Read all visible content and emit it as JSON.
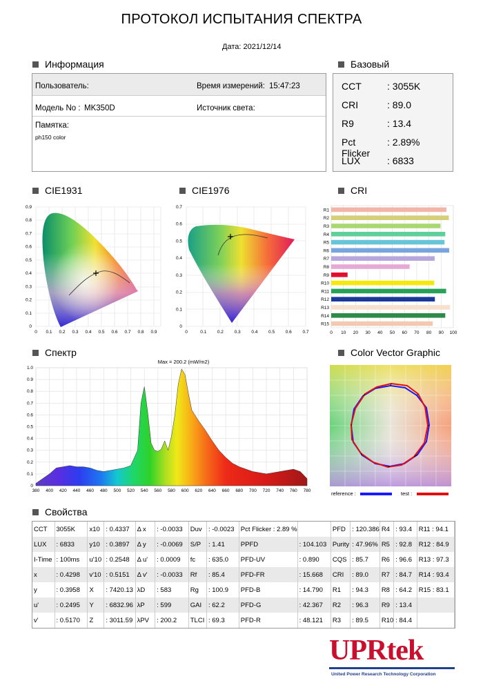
{
  "title": "ПРОТОКОЛ ИСПЫТАНИЯ СПЕКТРА",
  "date": "Дата: 2021/12/14",
  "sections": {
    "info": "Информация",
    "basic": "Базовый",
    "cie1931": "CIE1931",
    "cie1976": "CIE1976",
    "cri": "CRI",
    "spectrum": "Спектр",
    "cvg": "Color Vector Graphic",
    "props": "Свойства"
  },
  "info": {
    "user_label": "Пользователь:",
    "time_label": "Время измерений:",
    "time_value": "15:47:23",
    "model_label": "Модель No :",
    "model_value": "MK350D",
    "source_label": "Источник света:",
    "memo_label": "Памятка:",
    "memo_value": "ph150 color"
  },
  "basic": [
    {
      "k": "CCT",
      "v": ": 3055K"
    },
    {
      "k": "CRI",
      "v": ": 89.0"
    },
    {
      "k": "R9",
      "v": ": 13.4"
    },
    {
      "k": "Pct Flicker",
      "v": ": 2.89%"
    },
    {
      "k": "LUX",
      "v": ": 6833"
    }
  ],
  "cie1931_ticks": {
    "x": [
      "0",
      "0.1",
      "0.2",
      "0.3",
      "0.4",
      "0.5",
      "0.6",
      "0.7",
      "0.8",
      "0.9"
    ],
    "y": [
      "0",
      "0.1",
      "0.2",
      "0.3",
      "0.4",
      "0.5",
      "0.6",
      "0.7",
      "0.8",
      "0.9"
    ]
  },
  "cie1976_ticks": {
    "x": [
      "0",
      "0.1",
      "0.2",
      "0.3",
      "0.4",
      "0.5",
      "0.6",
      "0.7"
    ],
    "y": [
      "0",
      "0.1",
      "0.2",
      "0.3",
      "0.4",
      "0.5",
      "0.6",
      "0.7"
    ]
  },
  "chart_data": [
    {
      "type": "bar",
      "orientation": "horizontal",
      "categories": [
        "R1",
        "R2",
        "R3",
        "R4",
        "R5",
        "R6",
        "R7",
        "R8",
        "R9",
        "R10",
        "R11",
        "R12",
        "R13",
        "R14",
        "R15"
      ],
      "values": [
        94.3,
        96.3,
        89.5,
        93.4,
        92.8,
        96.6,
        84.7,
        64.2,
        13.4,
        84.4,
        94.1,
        84.9,
        97.3,
        93.4,
        83.1
      ],
      "colors": [
        "#f2b6a8",
        "#d6cf7a",
        "#a9d873",
        "#5fcf9b",
        "#67c5d8",
        "#7aa4de",
        "#b7a6de",
        "#e6a9d4",
        "#e0102e",
        "#f4e80c",
        "#27a05a",
        "#1a3a9a",
        "#f8e0cf",
        "#2d8b4a",
        "#f4c9b2"
      ],
      "xlim": [
        0,
        100
      ],
      "xticks": [
        "0",
        "10",
        "20",
        "30",
        "40",
        "50",
        "60",
        "70",
        "80",
        "90",
        "100"
      ]
    },
    {
      "type": "area",
      "title": "Max = 200.2 (mW/m2)",
      "xlim": [
        380,
        780
      ],
      "ylim": [
        0,
        1.0
      ],
      "xticks": [
        "380",
        "400",
        "420",
        "440",
        "460",
        "480",
        "500",
        "520",
        "540",
        "560",
        "580",
        "600",
        "620",
        "640",
        "660",
        "680",
        "700",
        "720",
        "740",
        "760",
        "780"
      ],
      "yticks": [
        "0",
        "0.1",
        "0.2",
        "0.3",
        "0.4",
        "0.5",
        "0.6",
        "0.7",
        "0.8",
        "0.9",
        "1.0"
      ],
      "x": [
        380,
        390,
        400,
        410,
        420,
        430,
        440,
        450,
        460,
        470,
        480,
        490,
        500,
        510,
        520,
        530,
        535,
        540,
        545,
        550,
        555,
        560,
        565,
        570,
        575,
        580,
        585,
        590,
        595,
        600,
        605,
        610,
        620,
        630,
        640,
        650,
        660,
        670,
        680,
        690,
        700,
        710,
        720,
        730,
        740,
        750,
        760,
        770,
        780
      ],
      "y": [
        0.02,
        0.06,
        0.1,
        0.15,
        0.16,
        0.17,
        0.16,
        0.16,
        0.15,
        0.13,
        0.12,
        0.13,
        0.14,
        0.15,
        0.17,
        0.3,
        0.7,
        0.84,
        0.62,
        0.36,
        0.3,
        0.29,
        0.31,
        0.38,
        0.3,
        0.42,
        0.6,
        0.86,
        0.99,
        0.94,
        0.78,
        0.64,
        0.55,
        0.47,
        0.38,
        0.3,
        0.24,
        0.19,
        0.16,
        0.14,
        0.12,
        0.11,
        0.1,
        0.11,
        0.12,
        0.13,
        0.14,
        0.12,
        0.06
      ]
    },
    {
      "type": "scatter",
      "series": [
        {
          "name": "reference",
          "color": "#1a1aff"
        },
        {
          "name": "test",
          "color": "#e01010"
        }
      ]
    }
  ],
  "cvg": {
    "legend_reference": "reference :",
    "legend_test": "test :",
    "ref_color": "#1a1aff",
    "test_color": "#e01010"
  },
  "props_rows": [
    [
      "CCT",
      "3055K",
      "x10",
      ": 0.4337",
      "Δ x",
      ": -0.0033",
      "Duv",
      ": -0.0023",
      "Pct Flicker : 2.89 %",
      "",
      "PFD",
      ": 120.386",
      "R4",
      ": 93.4",
      "R11 : 94.1"
    ],
    [
      "LUX",
      ": 6833",
      "y10",
      ": 0.3897",
      "Δ y",
      ": -0.0069",
      "S/P",
      ": 1.41",
      "PPFD",
      ": 104.103",
      "Purity",
      ": 47.96%",
      "R5",
      ": 92.8",
      "R12 : 84.9"
    ],
    [
      "I-Time",
      ": 100ms",
      "u'10",
      ": 0.2548",
      "Δ u'",
      ": 0.0009",
      "fc",
      ": 635.0",
      "PFD-UV",
      ": 0.890",
      "CQS",
      ": 85.7",
      "R6",
      ": 96.6",
      "R13 : 97.3"
    ],
    [
      "x",
      ": 0.4298",
      "v'10",
      ": 0.5151",
      "Δ v'",
      ": -0.0033",
      "Rf",
      ": 85.4",
      "PFD-FR",
      ": 15.668",
      "CRI",
      ": 89.0",
      "R7",
      ": 84.7",
      "R14 : 93.4"
    ],
    [
      "y",
      ": 0.3958",
      "X",
      ": 7420.13",
      "λD",
      ": 583",
      "Rg",
      ": 100.9",
      "PFD-B",
      ": 14.790",
      "R1",
      ": 94.3",
      "R8",
      ": 64.2",
      "R15 : 83.1"
    ],
    [
      "u'",
      ": 0.2495",
      "Y",
      ": 6832.96",
      "λP",
      ": 599",
      "GAI",
      ": 62.2",
      "PFD-G",
      ": 42.367",
      "R2",
      ": 96.3",
      "R9",
      ": 13.4",
      ""
    ],
    [
      "v'",
      ": 0.5170",
      "Z",
      ": 3011.59",
      "λPV",
      ": 200.2",
      "TLCI",
      ": 69.3",
      "PFD-R",
      ": 48.121",
      "R3",
      ": 89.5",
      "R10",
      ": 84.4",
      ""
    ]
  ],
  "logo": {
    "name": "UPRtek",
    "subtitle": "United Power Research Technology Corporation"
  }
}
